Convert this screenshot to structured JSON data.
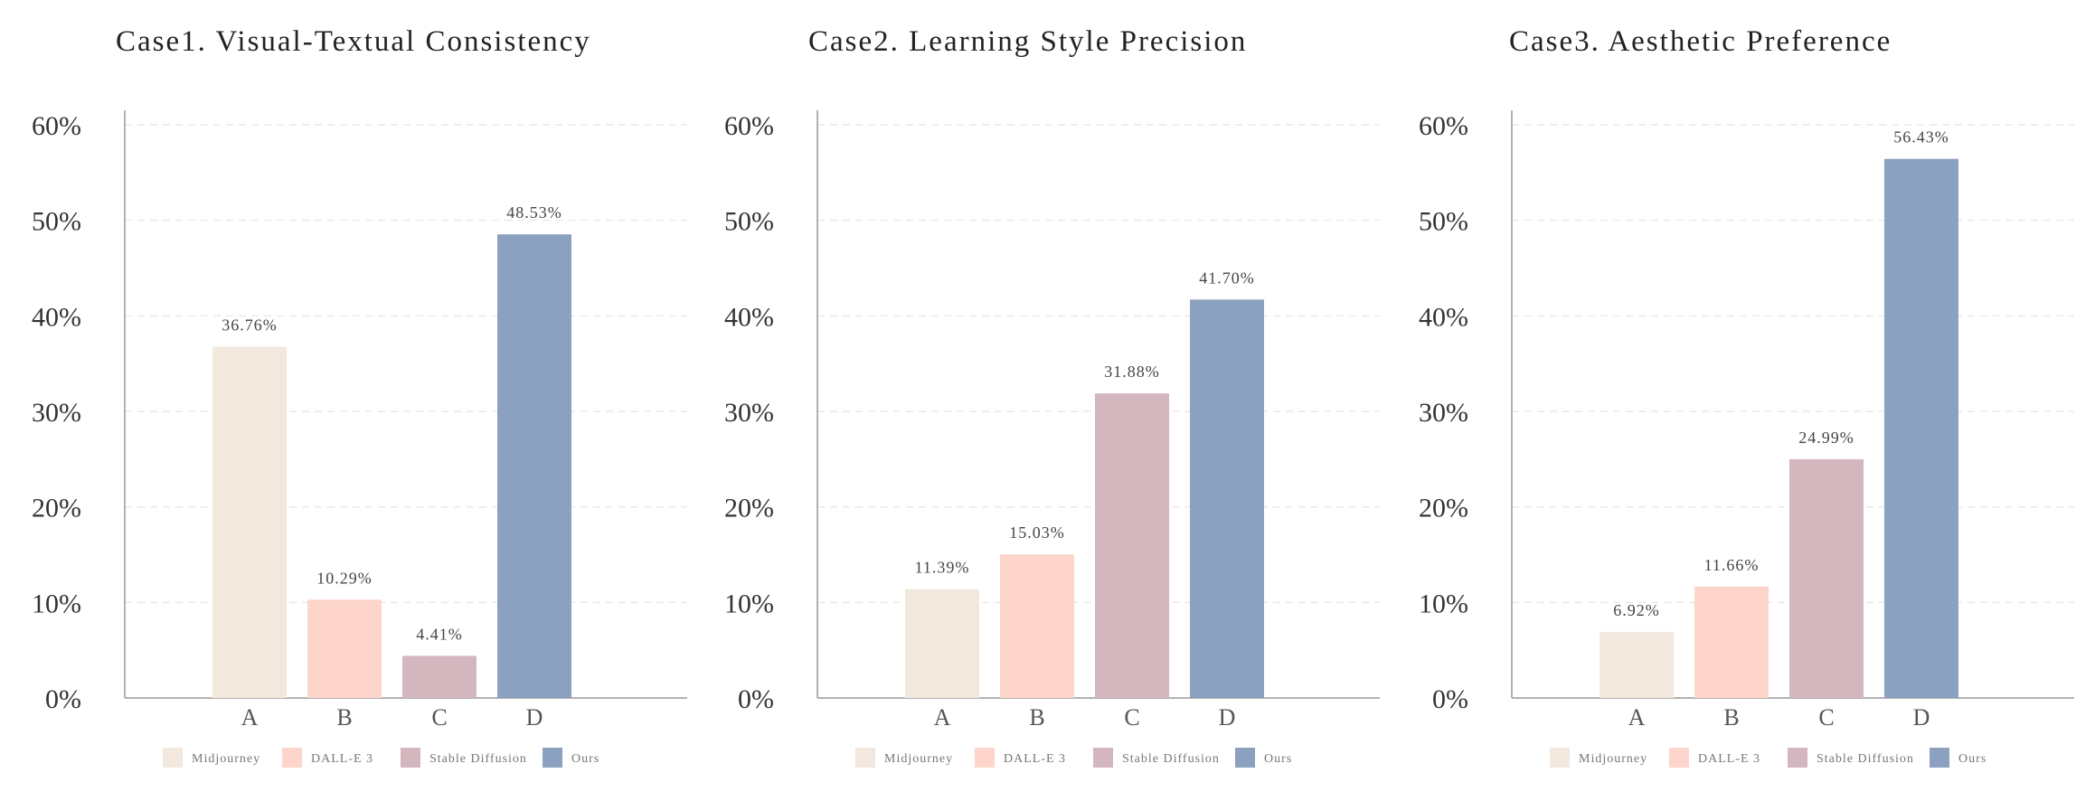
{
  "chart_data": [
    {
      "type": "bar",
      "title": "Case1.  Visual-Textual Consistency",
      "categories": [
        "A",
        "B",
        "C",
        "D"
      ],
      "values": [
        36.76,
        10.29,
        4.41,
        48.53
      ],
      "value_labels": [
        "36.76%",
        "10.29%",
        "4.41%",
        "48.53%"
      ],
      "yticks": [
        "0%",
        "10%",
        "20%",
        "30%",
        "40%",
        "50%",
        "60%"
      ],
      "ylim": [
        0,
        60
      ],
      "grid": true,
      "legend": [
        "Midjourney",
        "DALL-E 3",
        "Stable Diffusion",
        "Ours"
      ],
      "legend_placement": "bottom",
      "colors": [
        "#f3e8de",
        "#fdd5cb",
        "#d4b6bf",
        "#8ca0c0"
      ]
    },
    {
      "type": "bar",
      "title": "Case2.    Learning Style Precision",
      "categories": [
        "A",
        "B",
        "C",
        "D"
      ],
      "values": [
        11.39,
        15.03,
        31.88,
        41.7
      ],
      "value_labels": [
        "11.39%",
        "15.03%",
        "31.88%",
        "41.70%"
      ],
      "yticks": [
        "0%",
        "10%",
        "20%",
        "30%",
        "40%",
        "50%",
        "60%"
      ],
      "ylim": [
        0,
        60
      ],
      "grid": true,
      "legend": [
        "Midjourney",
        "DALL-E 3",
        "Stable Diffusion",
        "Ours"
      ],
      "legend_placement": "bottom",
      "colors": [
        "#f3e8de",
        "#fdd5cb",
        "#d4b6bf",
        "#8ca0c0"
      ]
    },
    {
      "type": "bar",
      "title": "Case3.        Aesthetic Preference",
      "categories": [
        "A",
        "B",
        "C",
        "D"
      ],
      "values": [
        6.92,
        11.66,
        24.99,
        56.43
      ],
      "value_labels": [
        "6.92%",
        "11.66%",
        "24.99%",
        "56.43%"
      ],
      "yticks": [
        "0%",
        "10%",
        "20%",
        "30%",
        "40%",
        "50%",
        "60%"
      ],
      "ylim": [
        0,
        60
      ],
      "grid": true,
      "legend": [
        "Midjourney",
        "DALL-E 3",
        "Stable Diffusion",
        "Ours"
      ],
      "legend_placement": "bottom",
      "colors": [
        "#f3e8de",
        "#fdd5cb",
        "#d4b6bf",
        "#8ca0c0"
      ]
    }
  ]
}
